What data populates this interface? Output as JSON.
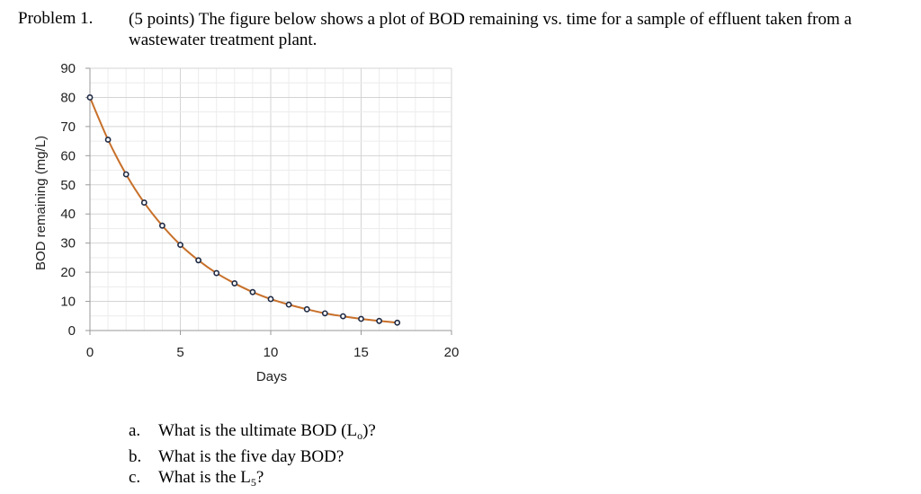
{
  "problem": {
    "label": "Problem 1.",
    "text": "(5 points) The figure below shows a plot of BOD remaining vs. time for a sample of effluent taken from a wastewater treatment plant."
  },
  "chart_data": {
    "type": "line",
    "xlabel": "Days",
    "ylabel": "BOD remaining (mg/L)",
    "xlim": [
      0,
      20
    ],
    "ylim": [
      0,
      90
    ],
    "xticks": [
      0,
      5,
      10,
      15,
      20
    ],
    "yticks": [
      0,
      10,
      20,
      30,
      40,
      50,
      60,
      70,
      80,
      90
    ],
    "grid": true,
    "line_color": "#c8702a",
    "marker_color": "#1f2a44",
    "x": [
      0,
      1,
      2,
      3,
      4,
      5,
      6,
      7,
      8,
      9,
      10,
      11,
      12,
      13,
      14,
      15,
      16,
      17
    ],
    "y": [
      80,
      65.5,
      53.6,
      43.9,
      36.0,
      29.4,
      24.1,
      19.7,
      16.2,
      13.2,
      10.8,
      8.9,
      7.3,
      5.9,
      4.9,
      4.0,
      3.3,
      2.7
    ]
  },
  "questions": {
    "a": {
      "letter": "a.",
      "text_before": "What is the ultimate BOD (L",
      "sub": "o",
      "text_after": ")?"
    },
    "b": {
      "letter": "b.",
      "text": "What is the five day BOD?"
    },
    "c": {
      "letter": "c.",
      "text_before": "What is the L",
      "sub": "5",
      "text_after": "?"
    }
  }
}
